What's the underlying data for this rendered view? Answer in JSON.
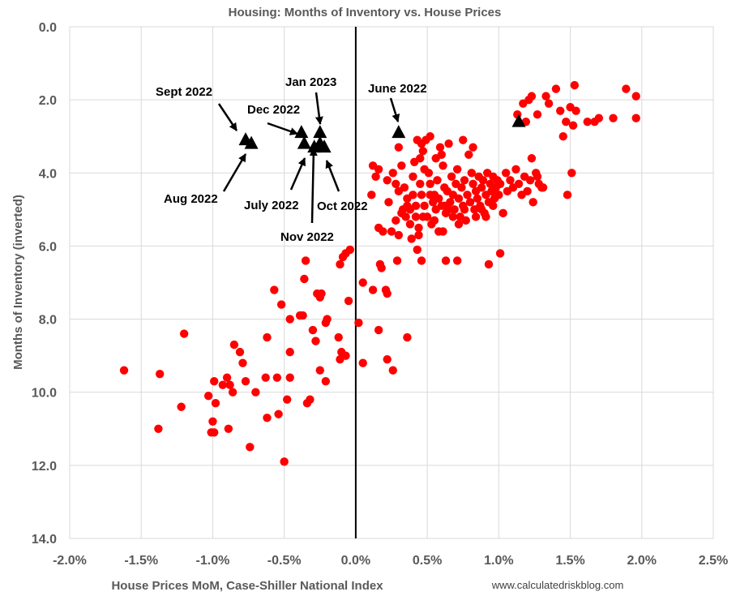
{
  "chart_data": {
    "type": "scatter",
    "title": "Housing: Months of Inventory vs. House Prices",
    "xlabel": "House Prices MoM, Case-Shiller National Index",
    "ylabel": "Months of Inventory (inverted)",
    "credit": "www.calculatedriskblog.com",
    "xlim": [
      -0.02,
      0.025
    ],
    "ylim": [
      0,
      14
    ],
    "y_inverted": true,
    "x_ticks": [
      -0.02,
      -0.015,
      -0.01,
      -0.005,
      0,
      0.005,
      0.01,
      0.015,
      0.02,
      0.025
    ],
    "x_tick_labels": [
      "-2.0%",
      "-1.5%",
      "-1.0%",
      "-0.5%",
      "0.0%",
      "0.5%",
      "1.0%",
      "1.5%",
      "2.0%",
      "2.5%"
    ],
    "y_ticks": [
      0,
      2,
      4,
      6,
      8,
      10,
      12,
      14
    ],
    "y_tick_labels": [
      "0.0",
      "2.0",
      "4.0",
      "6.0",
      "8.0",
      "10.0",
      "12.0",
      "14.0"
    ],
    "grid": true,
    "zero_line": true,
    "colors": {
      "historical": "#ff0000",
      "recent": "#000000",
      "grid": "#d9d9d9"
    },
    "series": [
      {
        "marker": "circle",
        "color": "#ff0000",
        "points": [
          [
            -0.0162,
            9.4
          ],
          [
            -0.0138,
            11.0
          ],
          [
            -0.0137,
            9.5
          ],
          [
            -0.012,
            8.4
          ],
          [
            -0.0122,
            10.4
          ],
          [
            -0.0101,
            11.1
          ],
          [
            -0.0099,
            11.1
          ],
          [
            -0.01,
            10.8
          ],
          [
            -0.0098,
            10.3
          ],
          [
            -0.0103,
            10.1
          ],
          [
            -0.0099,
            9.7
          ],
          [
            -0.0093,
            9.8
          ],
          [
            -0.009,
            9.6
          ],
          [
            -0.0088,
            9.8
          ],
          [
            -0.0086,
            10.0
          ],
          [
            -0.0089,
            11.0
          ],
          [
            -0.0085,
            8.7
          ],
          [
            -0.0081,
            8.9
          ],
          [
            -0.0079,
            9.2
          ],
          [
            -0.0077,
            9.7
          ],
          [
            -0.0074,
            11.5
          ],
          [
            -0.007,
            10.0
          ],
          [
            -0.0063,
            9.6
          ],
          [
            -0.0062,
            10.7
          ],
          [
            -0.0062,
            8.5
          ],
          [
            -0.0057,
            7.2
          ],
          [
            -0.0055,
            9.6
          ],
          [
            -0.0054,
            10.6
          ],
          [
            -0.0052,
            7.6
          ],
          [
            -0.005,
            11.9
          ],
          [
            -0.0048,
            10.2
          ],
          [
            -0.0046,
            8.9
          ],
          [
            -0.0046,
            9.6
          ],
          [
            -0.0046,
            8.0
          ],
          [
            -0.0039,
            7.9
          ],
          [
            -0.0037,
            7.9
          ],
          [
            -0.0036,
            6.9
          ],
          [
            -0.0035,
            6.4
          ],
          [
            -0.0034,
            10.3
          ],
          [
            -0.0032,
            10.2
          ],
          [
            -0.003,
            8.3
          ],
          [
            -0.0028,
            8.6
          ],
          [
            -0.0027,
            7.3
          ],
          [
            -0.0025,
            7.4
          ],
          [
            -0.0024,
            7.3
          ],
          [
            -0.0025,
            9.4
          ],
          [
            -0.0021,
            9.7
          ],
          [
            -0.002,
            8.0
          ],
          [
            -0.0021,
            8.1
          ],
          [
            -0.0011,
            6.5
          ],
          [
            -0.0009,
            6.3
          ],
          [
            -0.0007,
            6.2
          ],
          [
            -0.0004,
            6.1
          ],
          [
            -0.0012,
            8.5
          ],
          [
            -0.001,
            8.9
          ],
          [
            -0.0011,
            9.1
          ],
          [
            -0.0007,
            9.0
          ],
          [
            -0.0005,
            7.5
          ],
          [
            0.0002,
            8.1
          ],
          [
            0.0005,
            9.2
          ],
          [
            0.0005,
            7.0
          ],
          [
            0.0012,
            7.2
          ],
          [
            0.0016,
            8.3
          ],
          [
            0.0017,
            6.5
          ],
          [
            0.0018,
            6.6
          ],
          [
            0.0021,
            7.2
          ],
          [
            0.0022,
            7.3
          ],
          [
            0.0022,
            9.1
          ],
          [
            0.0026,
            9.4
          ],
          [
            0.0029,
            6.4
          ],
          [
            0.0036,
            8.5
          ],
          [
            0.0043,
            6.1
          ],
          [
            0.0046,
            6.4
          ],
          [
            0.0063,
            6.4
          ],
          [
            0.0071,
            6.4
          ],
          [
            0.0093,
            6.5
          ],
          [
            0.0101,
            6.2
          ],
          [
            0.0011,
            4.6
          ],
          [
            0.0012,
            3.8
          ],
          [
            0.0014,
            4.1
          ],
          [
            0.0016,
            3.9
          ],
          [
            0.0016,
            5.5
          ],
          [
            0.0019,
            5.6
          ],
          [
            0.0022,
            4.2
          ],
          [
            0.0025,
            5.6
          ],
          [
            0.003,
            5.7
          ],
          [
            0.0026,
            4.0
          ],
          [
            0.0028,
            4.3
          ],
          [
            0.003,
            4.5
          ],
          [
            0.003,
            3.3
          ],
          [
            0.0032,
            3.8
          ],
          [
            0.0034,
            4.4
          ],
          [
            0.0036,
            4.7
          ],
          [
            0.0038,
            5.0
          ],
          [
            0.004,
            4.1
          ],
          [
            0.0041,
            3.7
          ],
          [
            0.0042,
            5.2
          ],
          [
            0.0043,
            3.1
          ],
          [
            0.0045,
            3.6
          ],
          [
            0.0046,
            3.2
          ],
          [
            0.0046,
            4.6
          ],
          [
            0.0047,
            3.4
          ],
          [
            0.0048,
            4.9
          ],
          [
            0.0049,
            3.1
          ],
          [
            0.005,
            5.2
          ],
          [
            0.0051,
            4.0
          ],
          [
            0.0052,
            3.0
          ],
          [
            0.0052,
            4.3
          ],
          [
            0.0053,
            5.4
          ],
          [
            0.0054,
            4.8
          ],
          [
            0.0055,
            4.6
          ],
          [
            0.0056,
            3.6
          ],
          [
            0.0056,
            5.0
          ],
          [
            0.0057,
            4.2
          ],
          [
            0.0058,
            4.7
          ],
          [
            0.0059,
            3.3
          ],
          [
            0.006,
            3.5
          ],
          [
            0.006,
            4.9
          ],
          [
            0.0061,
            3.8
          ],
          [
            0.0062,
            4.4
          ],
          [
            0.0063,
            5.1
          ],
          [
            0.0064,
            4.5
          ],
          [
            0.0065,
            3.2
          ],
          [
            0.0066,
            4.8
          ],
          [
            0.0067,
            4.1
          ],
          [
            0.0068,
            4.6
          ],
          [
            0.0069,
            5.0
          ],
          [
            0.007,
            4.3
          ],
          [
            0.0071,
            3.9
          ],
          [
            0.0072,
            4.7
          ],
          [
            0.0073,
            5.2
          ],
          [
            0.0074,
            4.4
          ],
          [
            0.0075,
            4.9
          ],
          [
            0.0076,
            4.2
          ],
          [
            0.0077,
            5.3
          ],
          [
            0.0078,
            4.6
          ],
          [
            0.0079,
            3.5
          ],
          [
            0.008,
            4.8
          ],
          [
            0.0081,
            4.0
          ],
          [
            0.0082,
            4.3
          ],
          [
            0.0083,
            5.0
          ],
          [
            0.0084,
            4.5
          ],
          [
            0.0085,
            4.7
          ],
          [
            0.0086,
            4.1
          ],
          [
            0.0087,
            4.9
          ],
          [
            0.0088,
            4.4
          ],
          [
            0.0089,
            4.2
          ],
          [
            0.009,
            5.1
          ],
          [
            0.0091,
            4.6
          ],
          [
            0.0092,
            4.0
          ],
          [
            0.0093,
            4.8
          ],
          [
            0.0094,
            4.3
          ],
          [
            0.0095,
            4.5
          ],
          [
            0.0096,
            4.1
          ],
          [
            0.0097,
            4.7
          ],
          [
            0.0098,
            4.4
          ],
          [
            0.0099,
            4.2
          ],
          [
            0.01,
            4.6
          ],
          [
            0.0101,
            4.3
          ],
          [
            0.0103,
            5.1
          ],
          [
            0.0105,
            4.0
          ],
          [
            0.0106,
            4.5
          ],
          [
            0.0108,
            4.2
          ],
          [
            0.011,
            4.4
          ],
          [
            0.0112,
            3.9
          ],
          [
            0.0114,
            4.3
          ],
          [
            0.0116,
            4.6
          ],
          [
            0.0118,
            4.1
          ],
          [
            0.012,
            4.5
          ],
          [
            0.0122,
            4.2
          ],
          [
            0.0124,
            4.8
          ],
          [
            0.0126,
            4.0
          ],
          [
            0.0128,
            4.3
          ],
          [
            0.013,
            4.4
          ],
          [
            0.0035,
            5.2
          ],
          [
            0.0038,
            5.4
          ],
          [
            0.0042,
            4.9
          ],
          [
            0.0044,
            5.5
          ],
          [
            0.0055,
            5.3
          ],
          [
            0.0058,
            5.6
          ],
          [
            0.0065,
            5.0
          ],
          [
            0.0072,
            5.4
          ],
          [
            0.0033,
            5.0
          ],
          [
            0.0047,
            5.2
          ],
          [
            0.0052,
            4.6
          ],
          [
            0.0062,
            4.9
          ],
          [
            0.0068,
            5.2
          ],
          [
            0.0076,
            5.0
          ],
          [
            0.0084,
            5.2
          ],
          [
            0.0088,
            5.0
          ],
          [
            0.0091,
            5.2
          ],
          [
            0.0096,
            4.9
          ],
          [
            0.0113,
            2.4
          ],
          [
            0.0117,
            2.1
          ],
          [
            0.0121,
            2.0
          ],
          [
            0.0123,
            1.9
          ],
          [
            0.0123,
            3.6
          ],
          [
            0.0127,
            2.4
          ],
          [
            0.0127,
            4.1
          ],
          [
            0.0131,
            4.4
          ],
          [
            0.0133,
            1.9
          ],
          [
            0.0135,
            2.1
          ],
          [
            0.014,
            1.7
          ],
          [
            0.0143,
            2.3
          ],
          [
            0.0145,
            3.0
          ],
          [
            0.0147,
            2.6
          ],
          [
            0.0148,
            4.6
          ],
          [
            0.015,
            2.2
          ],
          [
            0.0151,
            4.0
          ],
          [
            0.0152,
            2.7
          ],
          [
            0.0153,
            1.6
          ],
          [
            0.0154,
            2.3
          ],
          [
            0.0162,
            2.6
          ],
          [
            0.0167,
            2.6
          ],
          [
            0.017,
            2.5
          ],
          [
            0.018,
            2.5
          ],
          [
            0.0189,
            1.7
          ],
          [
            0.0196,
            1.9
          ],
          [
            0.0196,
            2.5
          ],
          [
            0.0119,
            2.6
          ],
          [
            0.0082,
            3.3
          ],
          [
            0.0075,
            3.1
          ],
          [
            0.0048,
            3.9
          ],
          [
            0.0045,
            4.3
          ],
          [
            0.004,
            4.6
          ],
          [
            0.0036,
            4.9
          ],
          [
            0.0032,
            5.1
          ],
          [
            0.0028,
            5.3
          ],
          [
            0.0044,
            5.7
          ],
          [
            0.0061,
            5.6
          ],
          [
            0.0039,
            5.8
          ],
          [
            0.0023,
            4.8
          ]
        ]
      },
      {
        "marker": "triangle",
        "color": "#000000",
        "points": [
          [
            -0.0077,
            3.1
          ],
          [
            -0.0073,
            3.2
          ],
          [
            -0.0038,
            2.9
          ],
          [
            -0.0036,
            3.2
          ],
          [
            -0.0029,
            3.3
          ],
          [
            -0.0025,
            2.9
          ],
          [
            -0.0025,
            3.2
          ],
          [
            -0.0022,
            3.3
          ],
          [
            0.003,
            2.9
          ],
          [
            0.0114,
            2.6
          ]
        ]
      }
    ],
    "annotations": [
      {
        "text": "Sept 2022"
      },
      {
        "text": "Aug 2022"
      },
      {
        "text": "Dec 2022"
      },
      {
        "text": "Jan 2023"
      },
      {
        "text": "July 2022"
      },
      {
        "text": "Oct 2022"
      },
      {
        "text": "Nov 2022"
      },
      {
        "text": "June 2022"
      }
    ]
  }
}
